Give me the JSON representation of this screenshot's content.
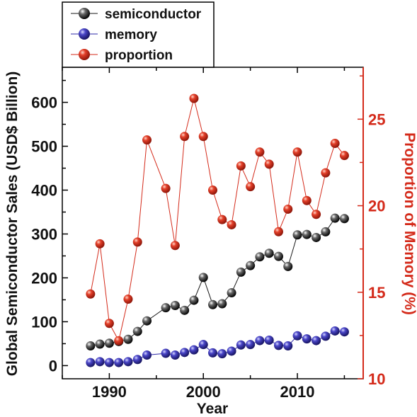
{
  "chart_data": {
    "type": "line",
    "xlabel": "Year",
    "ylabel_left": "Global Semiconductor Sales (USD$ Billion)",
    "ylabel_right": "Proportion of Memory (%)",
    "xlim": [
      1985,
      2017
    ],
    "ylim_left": [
      -30,
      680
    ],
    "ylim_right": [
      10,
      28
    ],
    "x_ticks": [
      1990,
      2000,
      2010
    ],
    "y_ticks_left": [
      0,
      100,
      200,
      300,
      400,
      500,
      600
    ],
    "y_ticks_right": [
      10,
      15,
      20,
      25
    ],
    "legend": {
      "position": "top-left-outside",
      "entries": [
        "semiconductor",
        "memory",
        "proportion"
      ]
    },
    "x": [
      1988,
      1989,
      1990,
      1991,
      1992,
      1993,
      1994,
      1996,
      1997,
      1998,
      1999,
      2000,
      2001,
      2002,
      2003,
      2004,
      2005,
      2006,
      2007,
      2008,
      2009,
      2010,
      2011,
      2012,
      2013,
      2014,
      2015
    ],
    "series": [
      {
        "name": "semiconductor",
        "axis": "left",
        "color": "#1a1a1a",
        "values": [
          45,
          49,
          51,
          55,
          60,
          78,
          102,
          132,
          137,
          126,
          149,
          201,
          139,
          141,
          166,
          213,
          228,
          248,
          256,
          249,
          226,
          298,
          299,
          292,
          305,
          336,
          335
        ]
      },
      {
        "name": "memory",
        "axis": "left",
        "color": "#2e2aa8",
        "values": [
          7,
          9,
          7,
          7,
          9,
          14,
          24,
          28,
          24,
          30,
          36,
          48,
          29,
          27,
          33,
          47,
          48,
          57,
          58,
          46,
          45,
          68,
          61,
          57,
          67,
          79,
          77
        ]
      },
      {
        "name": "proportion",
        "axis": "right",
        "color": "#d42a1a",
        "values": [
          14.9,
          17.8,
          13.2,
          12.2,
          14.6,
          17.9,
          23.8,
          21.0,
          17.7,
          24.0,
          26.2,
          24.0,
          20.9,
          19.2,
          18.9,
          22.3,
          21.1,
          23.1,
          22.4,
          18.5,
          19.8,
          23.1,
          20.3,
          19.5,
          21.9,
          23.6,
          22.9
        ]
      }
    ]
  }
}
